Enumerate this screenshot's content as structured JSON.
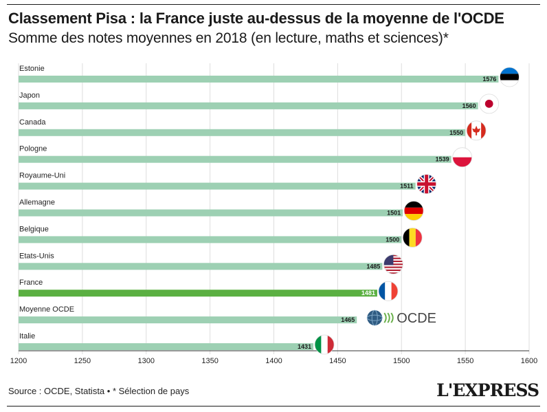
{
  "header": {
    "title": "Classement Pisa : la France juste au-dessus de la moyenne de l'OCDE",
    "subtitle": "Somme des notes moyennes en 2018 (en lecture, maths et sciences)*"
  },
  "footer": {
    "source": "Source : OCDE, Statista • * Sélection de pays",
    "brand": "L'EXPRESS"
  },
  "chart_data": {
    "type": "bar",
    "orientation": "horizontal",
    "title": "",
    "xlabel": "",
    "ylabel": "",
    "xlim": [
      1200,
      1600
    ],
    "ticks": [
      1200,
      1250,
      1300,
      1350,
      1400,
      1450,
      1500,
      1550,
      1600
    ],
    "grid": true,
    "categories": [
      "Estonie",
      "Japon",
      "Canada",
      "Pologne",
      "Royaume-Uni",
      "Allemagne",
      "Belgique",
      "Etats-Unis",
      "France",
      "Moyenne OCDE",
      "Italie"
    ],
    "values": [
      1576,
      1560,
      1550,
      1539,
      1511,
      1501,
      1500,
      1485,
      1481,
      1465,
      1431
    ],
    "highlight": "France",
    "flags": [
      "estonia-flag",
      "japan-flag",
      "canada-flag",
      "poland-flag",
      "uk-flag",
      "germany-flag",
      "belgium-flag",
      "usa-flag",
      "france-flag",
      "oecd-logo",
      "italy-flag"
    ],
    "oecd_logo_text": "OCDE",
    "colors": {
      "bar": "#9dd0b3",
      "highlight": "#5bb042",
      "grid": "#dddddd"
    }
  }
}
